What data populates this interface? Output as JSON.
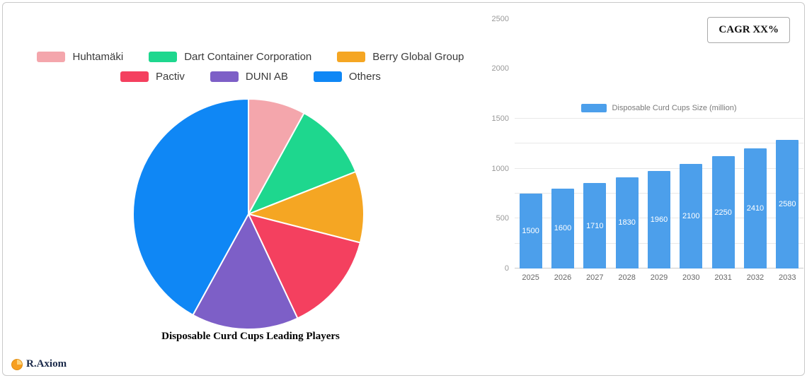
{
  "header": {
    "cagr_label": "CAGR XX%"
  },
  "footer": {
    "brand": "R.Axiom"
  },
  "chart_data": [
    {
      "type": "pie",
      "title": "Disposable Curd Cups Leading Players",
      "labels": [
        "Huhtamäki",
        "Dart Container Corporation",
        "Berry Global Group",
        "Pactiv",
        "DUNI AB",
        "Others"
      ],
      "values": [
        8,
        11,
        10,
        14,
        15,
        42
      ],
      "colors": [
        "#F4A6AC",
        "#1ED78E",
        "#F5A623",
        "#F4405F",
        "#7D5FC7",
        "#0F87F5"
      ],
      "legend_position": "top"
    },
    {
      "type": "bar",
      "legend": [
        "Disposable Curd Cups Size (million)"
      ],
      "categories": [
        "2025",
        "2026",
        "2027",
        "2028",
        "2029",
        "2030",
        "2031",
        "2032",
        "2033"
      ],
      "values": [
        1500,
        1600,
        1710,
        1830,
        1960,
        2100,
        2250,
        2410,
        2580
      ],
      "ylim": [
        0,
        3000
      ],
      "yticks": [
        0,
        500,
        1000,
        1500,
        2000,
        2500,
        3000
      ],
      "bar_color": "#4C9FEB",
      "grid": true,
      "xlabel": "",
      "ylabel": ""
    }
  ]
}
